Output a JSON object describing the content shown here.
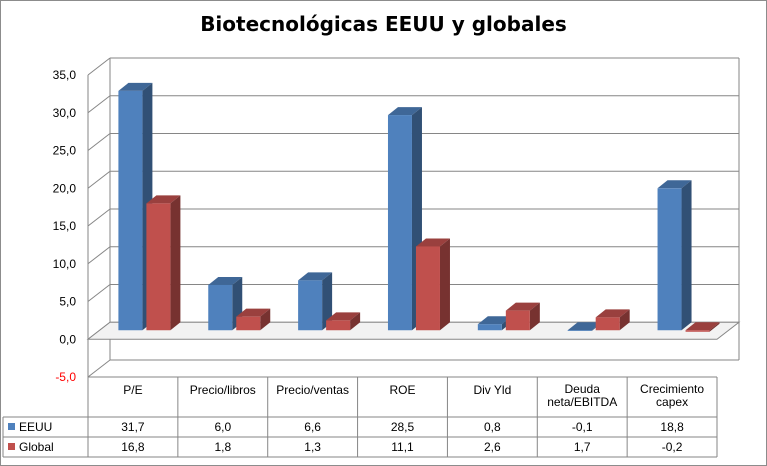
{
  "chart_data": {
    "type": "bar",
    "title": "Biotecnológicas EEUU y globales",
    "categories": [
      "P/E",
      "Precio/libros",
      "Precio/ventas",
      "ROE",
      "Div Yld",
      "Deuda neta/EBITDA",
      "Crecimiento capex"
    ],
    "category_lines": [
      [
        "P/E"
      ],
      [
        "Precio/libros"
      ],
      [
        "Precio/ventas"
      ],
      [
        "ROE"
      ],
      [
        "Div Yld"
      ],
      [
        "Deuda",
        "neta/EBITDA"
      ],
      [
        "Crecimiento",
        "capex"
      ]
    ],
    "series": [
      {
        "name": "EEUU",
        "values": [
          31.7,
          6.0,
          6.6,
          28.5,
          0.8,
          -0.1,
          18.8
        ],
        "labels": [
          "31,7",
          "6,0",
          "6,6",
          "28,5",
          "0,8",
          "-0,1",
          "18,8"
        ],
        "color": "#4F81BD"
      },
      {
        "name": "Global",
        "values": [
          16.8,
          1.8,
          1.3,
          11.1,
          2.6,
          1.7,
          -0.2
        ],
        "labels": [
          "16,8",
          "1,8",
          "1,3",
          "11,1",
          "2,6",
          "1,7",
          "-0,2"
        ],
        "color": "#C0504D"
      }
    ],
    "ylim": [
      -5,
      35
    ],
    "yticks": [
      -5,
      0,
      5,
      10,
      15,
      20,
      25,
      30,
      35
    ],
    "ytick_labels": [
      "-5,0",
      "0,0",
      "5,0",
      "10,0",
      "15,0",
      "20,0",
      "25,0",
      "30,0",
      "35,0"
    ],
    "negative_tick_color": "#FF0000",
    "grid": true,
    "legend": "data-table",
    "style": "3d-clustered-column"
  }
}
